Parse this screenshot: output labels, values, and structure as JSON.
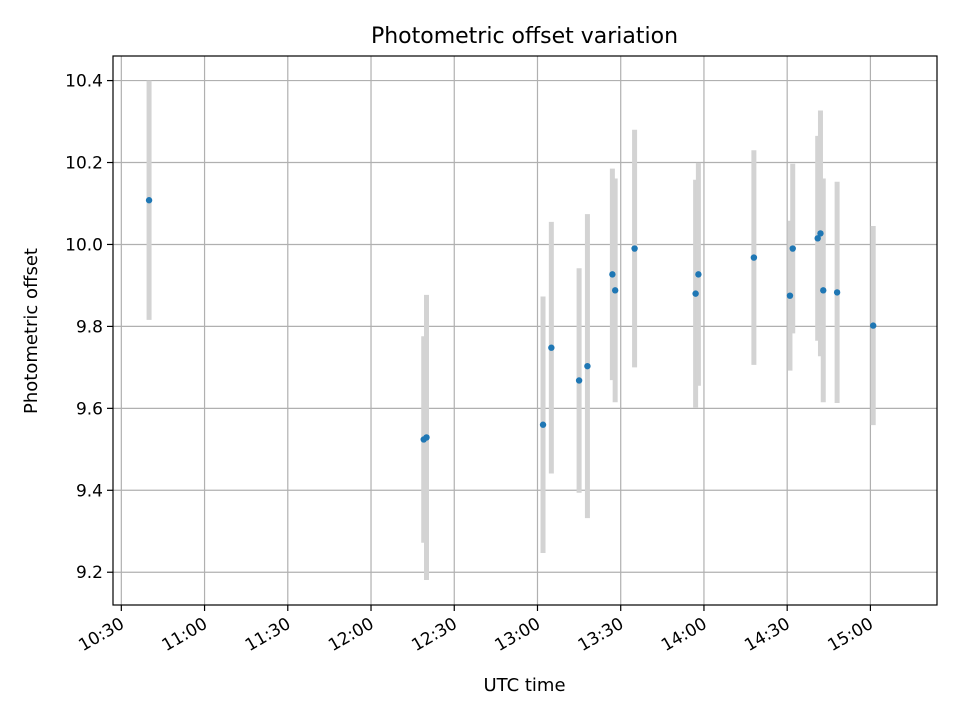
{
  "chart_data": {
    "type": "scatter",
    "title": "Photometric offset variation",
    "xlabel": "UTC time",
    "ylabel": "Photometric offset",
    "x_is_time": true,
    "xlim": [
      "10:27",
      "15:24"
    ],
    "ylim": [
      9.12,
      10.46
    ],
    "x_ticks": [
      "10:30",
      "11:00",
      "11:30",
      "12:00",
      "12:30",
      "13:00",
      "13:30",
      "14:00",
      "14:30",
      "15:00"
    ],
    "y_ticks": [
      9.2,
      9.4,
      9.6,
      9.8,
      10.0,
      10.2,
      10.4
    ],
    "y_tick_labels": [
      "9.2",
      "9.4",
      "9.6",
      "9.8",
      "10.0",
      "10.2",
      "10.4"
    ],
    "grid": true,
    "marker_color": "#1f77b4",
    "errorbar_color": "#d3d3d3",
    "points": [
      {
        "x": "10:40",
        "y": 10.108,
        "err": 0.292
      },
      {
        "x": "12:19",
        "y": 9.524,
        "err": 0.252
      },
      {
        "x": "12:20",
        "y": 9.529,
        "err": 0.348
      },
      {
        "x": "13:02",
        "y": 9.56,
        "err": 0.313
      },
      {
        "x": "13:05",
        "y": 9.748,
        "err": 0.307
      },
      {
        "x": "13:15",
        "y": 9.668,
        "err": 0.274
      },
      {
        "x": "13:18",
        "y": 9.703,
        "err": 0.371
      },
      {
        "x": "13:27",
        "y": 9.927,
        "err": 0.258
      },
      {
        "x": "13:28",
        "y": 9.888,
        "err": 0.273
      },
      {
        "x": "13:35",
        "y": 9.99,
        "err": 0.29
      },
      {
        "x": "13:57",
        "y": 9.88,
        "err": 0.278
      },
      {
        "x": "13:58",
        "y": 9.927,
        "err": 0.272
      },
      {
        "x": "14:18",
        "y": 9.968,
        "err": 0.262
      },
      {
        "x": "14:31",
        "y": 9.875,
        "err": 0.183
      },
      {
        "x": "14:32",
        "y": 9.99,
        "err": 0.207
      },
      {
        "x": "14:41",
        "y": 10.015,
        "err": 0.25
      },
      {
        "x": "14:42",
        "y": 10.027,
        "err": 0.3
      },
      {
        "x": "14:43",
        "y": 9.888,
        "err": 0.273
      },
      {
        "x": "14:48",
        "y": 9.883,
        "err": 0.27
      },
      {
        "x": "15:01",
        "y": 9.802,
        "err": 0.243
      }
    ]
  }
}
